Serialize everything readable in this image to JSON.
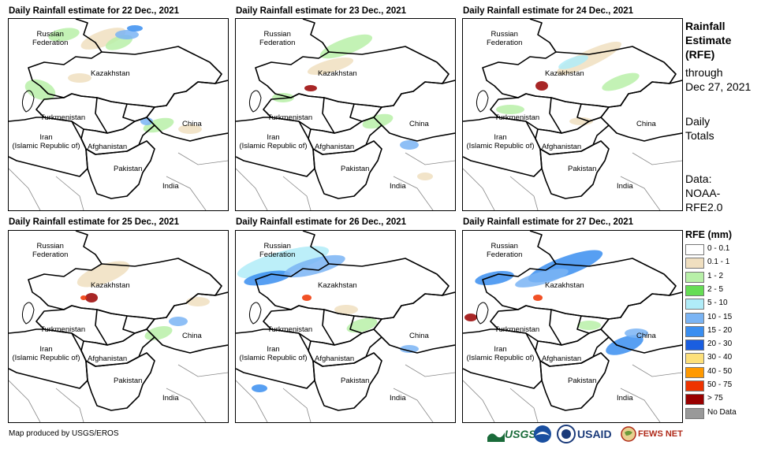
{
  "panels": [
    {
      "title": "Daily Rainfall estimate for 22 Dec., 2021"
    },
    {
      "title": "Daily Rainfall estimate for 23 Dec., 2021"
    },
    {
      "title": "Daily Rainfall estimate for 24 Dec., 2021"
    },
    {
      "title": "Daily Rainfall estimate for 25 Dec., 2021"
    },
    {
      "title": "Daily Rainfall estimate for 26 Dec., 2021"
    },
    {
      "title": "Daily Rainfall estimate for 27 Dec., 2021"
    }
  ],
  "country_labels": {
    "russia_1": "Russian",
    "russia_2": "Federation",
    "kazakhstan": "Kazakhstan",
    "turkmenistan": "Turkmenistan",
    "iran_1": "Iran",
    "iran_2": "(Islamic Republic of)",
    "afghanistan": "Afghanistan",
    "pakistan": "Pakistan",
    "china": "China",
    "india": "India"
  },
  "side_info": {
    "title_1": "Rainfall",
    "title_2": "Estimate",
    "title_3": "(RFE)",
    "through": "through",
    "date": "Dec 27, 2021",
    "daily_1": "Daily",
    "daily_2": "Totals",
    "data_1": "Data:",
    "data_2": "NOAA-",
    "data_3": "RFE2.0"
  },
  "legend": {
    "title": "RFE (mm)",
    "items": [
      {
        "label": "0 - 0.1",
        "color": "#ffffff"
      },
      {
        "label": "0.1 - 1",
        "color": "#f0dfc0"
      },
      {
        "label": "1 - 2",
        "color": "#b8f0a8"
      },
      {
        "label": "2 - 5",
        "color": "#66dd55"
      },
      {
        "label": "5 - 10",
        "color": "#b0ecf8"
      },
      {
        "label": "10 - 15",
        "color": "#7ab4f4"
      },
      {
        "label": "15 - 20",
        "color": "#3a8ef0"
      },
      {
        "label": "20 - 30",
        "color": "#1a5ee0"
      },
      {
        "label": "30 - 40",
        "color": "#fde07a"
      },
      {
        "label": "40 - 50",
        "color": "#ff9900"
      },
      {
        "label": "50 - 75",
        "color": "#ee3300"
      },
      {
        "label": "> 75",
        "color": "#990000"
      },
      {
        "label": "No Data",
        "color": "#999999"
      }
    ]
  },
  "credit": "Map produced by USGS/EROS",
  "logos": {
    "usgs": "USGS",
    "usaid": "USAID",
    "fewsnet": "FEWS NET"
  }
}
